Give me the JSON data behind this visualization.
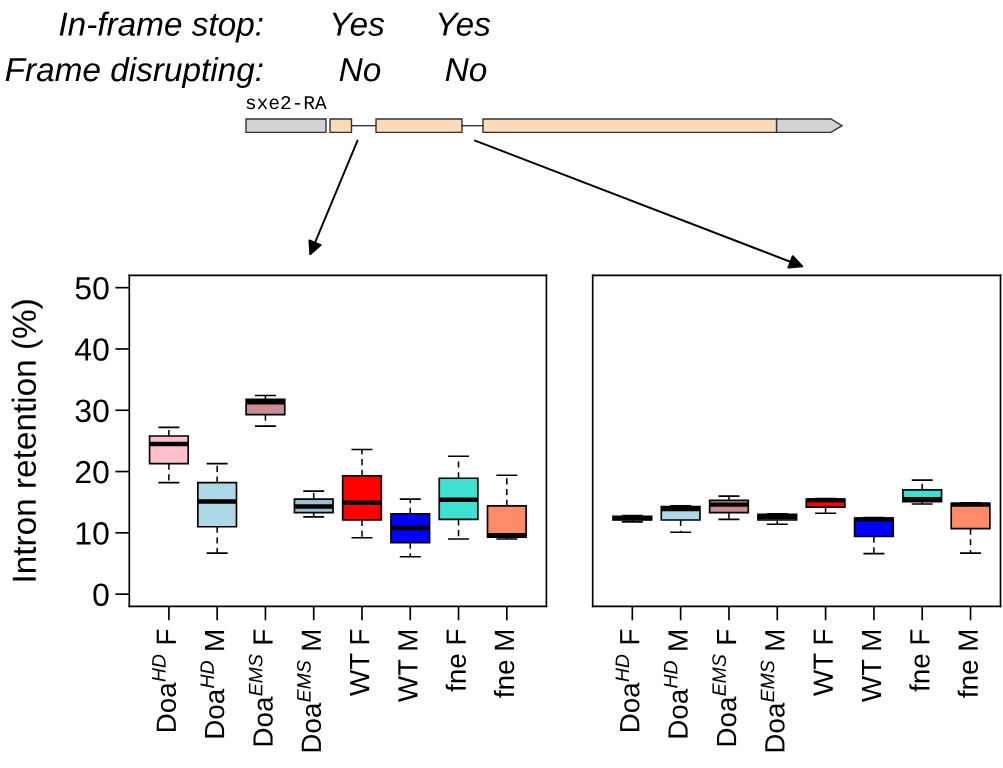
{
  "chart_data": [
    {
      "type": "other",
      "annotations": [
        "In-frame stop:",
        "Yes",
        "Yes",
        "Frame disrupting:",
        "No",
        "No",
        "sxe2-RA"
      ]
    },
    {
      "type": "box",
      "ylabel": "Intron retention (%)",
      "categories": [
        "Doa$^{HD}$ F",
        "Doa$^{HD}$ M",
        "Doa$^{EMS}$ F",
        "Doa$^{EMS}$ M",
        "WT F",
        "WT M",
        "fne F",
        "fne M"
      ],
      "colors": [
        "#ffc0cb",
        "#add8e6",
        "#cd8c95",
        "#9ac0cd",
        "#ff0000",
        "#0000ff",
        "#40e0d0",
        "#ff8c69"
      ],
      "ylim": [
        -2,
        52
      ],
      "yticks": [
        0,
        10,
        20,
        30,
        40,
        50
      ],
      "boxes": [
        {
          "low": 18.2,
          "q1": 21.3,
          "median": 24.5,
          "q3": 25.8,
          "high": 27.2
        },
        {
          "low": 6.7,
          "q1": 11.0,
          "median": 15.1,
          "q3": 18.2,
          "high": 21.3
        },
        {
          "low": 27.4,
          "q1": 29.3,
          "median": 31.3,
          "q3": 31.8,
          "high": 32.4
        },
        {
          "low": 12.6,
          "q1": 13.3,
          "median": 14.3,
          "q3": 15.5,
          "high": 16.8
        },
        {
          "low": 9.2,
          "q1": 12.1,
          "median": 14.9,
          "q3": 19.3,
          "high": 23.6
        },
        {
          "low": 6.1,
          "q1": 8.4,
          "median": 10.8,
          "q3": 13.1,
          "high": 15.5
        },
        {
          "low": 9.0,
          "q1": 12.2,
          "median": 15.4,
          "q3": 18.9,
          "high": 22.5
        },
        {
          "low": 9.0,
          "q1": 9.3,
          "median": 9.6,
          "q3": 14.4,
          "high": 19.4
        }
      ]
    },
    {
      "type": "box",
      "categories": [
        "Doa$^{HD}$ F",
        "Doa$^{HD}$ M",
        "Doa$^{EMS}$ F",
        "Doa$^{EMS}$ M",
        "WT F",
        "WT M",
        "fne F",
        "fne M"
      ],
      "colors": [
        "#ffc0cb",
        "#add8e6",
        "#cd8c95",
        "#9ac0cd",
        "#ff0000",
        "#0000ff",
        "#40e0d0",
        "#ff8c69"
      ],
      "ylim": [
        -2,
        52
      ],
      "tick_labels": "x",
      "boxes": [
        {
          "low": 11.8,
          "q1": 12.1,
          "median": 12.4,
          "q3": 12.7,
          "high": 12.8
        },
        {
          "low": 10.1,
          "q1": 12.1,
          "median": 13.9,
          "q3": 14.3,
          "high": 14.4
        },
        {
          "low": 12.2,
          "q1": 13.3,
          "median": 14.6,
          "q3": 15.3,
          "high": 16.0
        },
        {
          "low": 11.4,
          "q1": 12.1,
          "median": 12.6,
          "q3": 13.0,
          "high": 13.1
        },
        {
          "low": 13.2,
          "q1": 14.2,
          "median": 15.3,
          "q3": 15.5,
          "high": 15.6
        },
        {
          "low": 6.6,
          "q1": 9.4,
          "median": 12.2,
          "q3": 12.4,
          "high": 12.5
        },
        {
          "low": 14.7,
          "q1": 15.1,
          "median": 15.5,
          "q3": 17.0,
          "high": 18.6
        },
        {
          "low": 6.7,
          "q1": 10.7,
          "median": 14.6,
          "q3": 14.8,
          "high": 14.9
        }
      ]
    }
  ]
}
